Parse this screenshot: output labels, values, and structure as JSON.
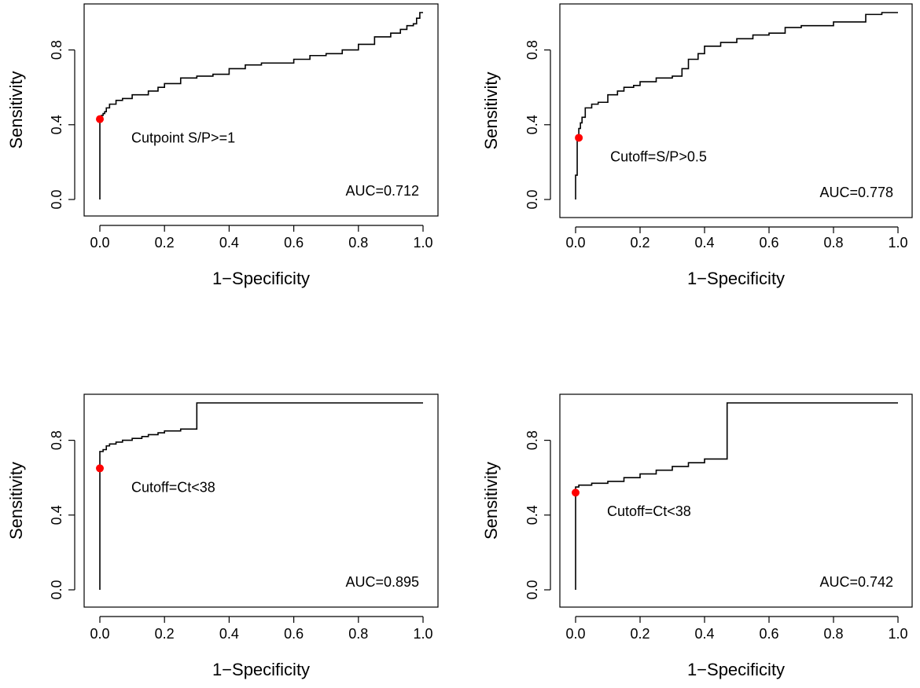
{
  "chart_data": [
    {
      "type": "line",
      "panel": "top-left",
      "xlabel": "1−Specificity",
      "ylabel": "Sensitivity",
      "xlim": [
        0,
        1
      ],
      "ylim": [
        0,
        1
      ],
      "xticks": [
        "0.0",
        "0.2",
        "0.4",
        "0.6",
        "0.8",
        "1.0"
      ],
      "yticks": [
        "0.0",
        "0.4",
        "0.8"
      ],
      "curve_x": [
        0,
        0,
        0.005,
        0.01,
        0.015,
        0.02,
        0.03,
        0.05,
        0.07,
        0.1,
        0.15,
        0.18,
        0.2,
        0.25,
        0.3,
        0.35,
        0.4,
        0.45,
        0.5,
        0.55,
        0.6,
        0.65,
        0.7,
        0.75,
        0.8,
        0.85,
        0.9,
        0.93,
        0.95,
        0.97,
        0.98,
        0.99,
        1.0
      ],
      "curve_y": [
        0,
        0.43,
        0.44,
        0.45,
        0.46,
        0.47,
        0.49,
        0.51,
        0.53,
        0.54,
        0.56,
        0.58,
        0.6,
        0.62,
        0.65,
        0.66,
        0.67,
        0.7,
        0.72,
        0.73,
        0.73,
        0.75,
        0.77,
        0.78,
        0.8,
        0.83,
        0.87,
        0.89,
        0.91,
        0.93,
        0.94,
        0.97,
        1.0
      ],
      "cutpoint": {
        "x": 0,
        "y": 0.43,
        "label": "Cutpoint S/P>=1"
      },
      "auc_label": "AUC=0.712",
      "line_color": "#000000",
      "point_color": "#ff0000"
    },
    {
      "type": "line",
      "panel": "top-right",
      "xlabel": "1−Specificity",
      "ylabel": "Sensitivity",
      "xlim": [
        0,
        1
      ],
      "ylim": [
        0,
        1
      ],
      "xticks": [
        "0.0",
        "0.2",
        "0.4",
        "0.6",
        "0.8",
        "1.0"
      ],
      "yticks": [
        "0.0",
        "0.4",
        "0.8"
      ],
      "curve_x": [
        0,
        0.005,
        0.005,
        0.01,
        0.01,
        0.015,
        0.02,
        0.03,
        0.05,
        0.07,
        0.1,
        0.13,
        0.15,
        0.18,
        0.2,
        0.25,
        0.3,
        0.33,
        0.35,
        0.38,
        0.4,
        0.45,
        0.5,
        0.55,
        0.6,
        0.65,
        0.7,
        0.8,
        0.9,
        0.95,
        1.0
      ],
      "curve_y": [
        0,
        0.13,
        0.26,
        0.33,
        0.35,
        0.38,
        0.41,
        0.44,
        0.49,
        0.51,
        0.52,
        0.56,
        0.58,
        0.6,
        0.61,
        0.63,
        0.65,
        0.66,
        0.7,
        0.75,
        0.78,
        0.82,
        0.84,
        0.86,
        0.88,
        0.89,
        0.92,
        0.93,
        0.95,
        0.99,
        1.0
      ],
      "cutpoint": {
        "x": 0.01,
        "y": 0.33,
        "label": "Cutoff=S/P>0.5"
      },
      "auc_label": "AUC=0.778",
      "line_color": "#000000",
      "point_color": "#ff0000"
    },
    {
      "type": "line",
      "panel": "bottom-left",
      "xlabel": "1−Specificity",
      "ylabel": "Sensitivity",
      "xlim": [
        0,
        1
      ],
      "ylim": [
        0,
        1
      ],
      "xticks": [
        "0.0",
        "0.2",
        "0.4",
        "0.6",
        "0.8",
        "1.0"
      ],
      "yticks": [
        "0.0",
        "0.4",
        "0.8"
      ],
      "curve_x": [
        0,
        0,
        0,
        0.01,
        0.02,
        0.03,
        0.05,
        0.07,
        0.1,
        0.13,
        0.15,
        0.18,
        0.2,
        0.25,
        0.3,
        1.0
      ],
      "curve_y": [
        0,
        0.65,
        0.73,
        0.74,
        0.75,
        0.77,
        0.78,
        0.79,
        0.8,
        0.81,
        0.82,
        0.83,
        0.84,
        0.85,
        0.86,
        1.0
      ],
      "cutpoint": {
        "x": 0,
        "y": 0.65,
        "label": "Cutoff=Ct<38"
      },
      "auc_label": "AUC=0.895",
      "line_color": "#000000",
      "point_color": "#ff0000"
    },
    {
      "type": "line",
      "panel": "bottom-right",
      "xlabel": "1−Specificity",
      "ylabel": "Sensitivity",
      "xlim": [
        0,
        1
      ],
      "ylim": [
        0,
        1
      ],
      "xticks": [
        "0.0",
        "0.2",
        "0.4",
        "0.6",
        "0.8",
        "1.0"
      ],
      "yticks": [
        "0.0",
        "0.4",
        "0.8"
      ],
      "curve_x": [
        0,
        0,
        0,
        0.01,
        0.05,
        0.1,
        0.15,
        0.2,
        0.25,
        0.3,
        0.35,
        0.4,
        0.47,
        1.0
      ],
      "curve_y": [
        0,
        0.52,
        0.54,
        0.55,
        0.56,
        0.57,
        0.58,
        0.6,
        0.62,
        0.64,
        0.66,
        0.68,
        0.7,
        1.0
      ],
      "cutpoint": {
        "x": 0,
        "y": 0.52,
        "label": "Cutoff=Ct<38"
      },
      "auc_label": "AUC=0.742",
      "line_color": "#000000",
      "point_color": "#ff0000"
    }
  ]
}
